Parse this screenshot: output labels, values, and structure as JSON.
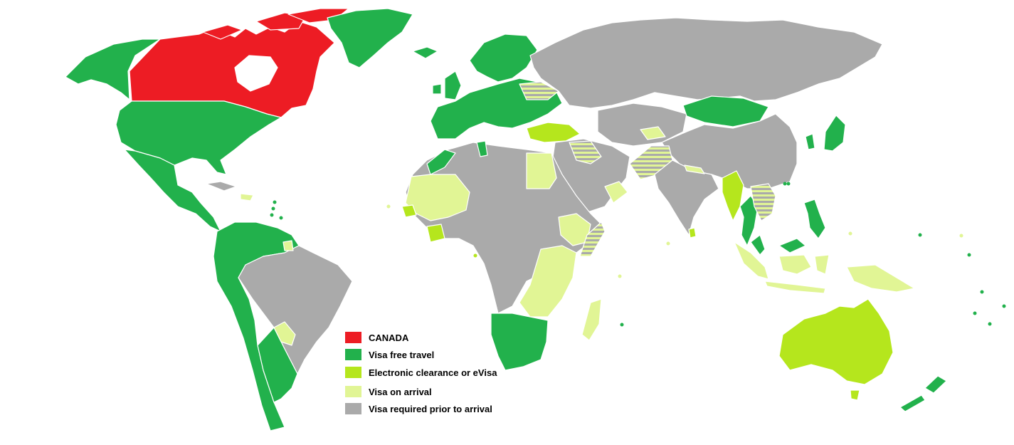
{
  "legend": {
    "items": [
      {
        "label": "CANADA",
        "color": "#ed1c24",
        "category": "home-country"
      },
      {
        "label": "Visa free travel",
        "color": "#22b14c",
        "category": "visa-free"
      },
      {
        "label": "Electronic clearance or eVisa",
        "color": "#b5e61d",
        "category": "evisa"
      },
      {
        "label": "Visa on arrival",
        "color": "#e1f595",
        "category": "visa-on-arrival"
      },
      {
        "label": "Visa required prior to arrival",
        "color": "#aaaaaa",
        "category": "visa-required"
      }
    ]
  },
  "colors": {
    "home": "#ed1c24",
    "visa_free": "#22b14c",
    "evisa": "#b5e61d",
    "on_arrival": "#e1f595",
    "required": "#aaaaaa",
    "ocean": "#ffffff"
  }
}
